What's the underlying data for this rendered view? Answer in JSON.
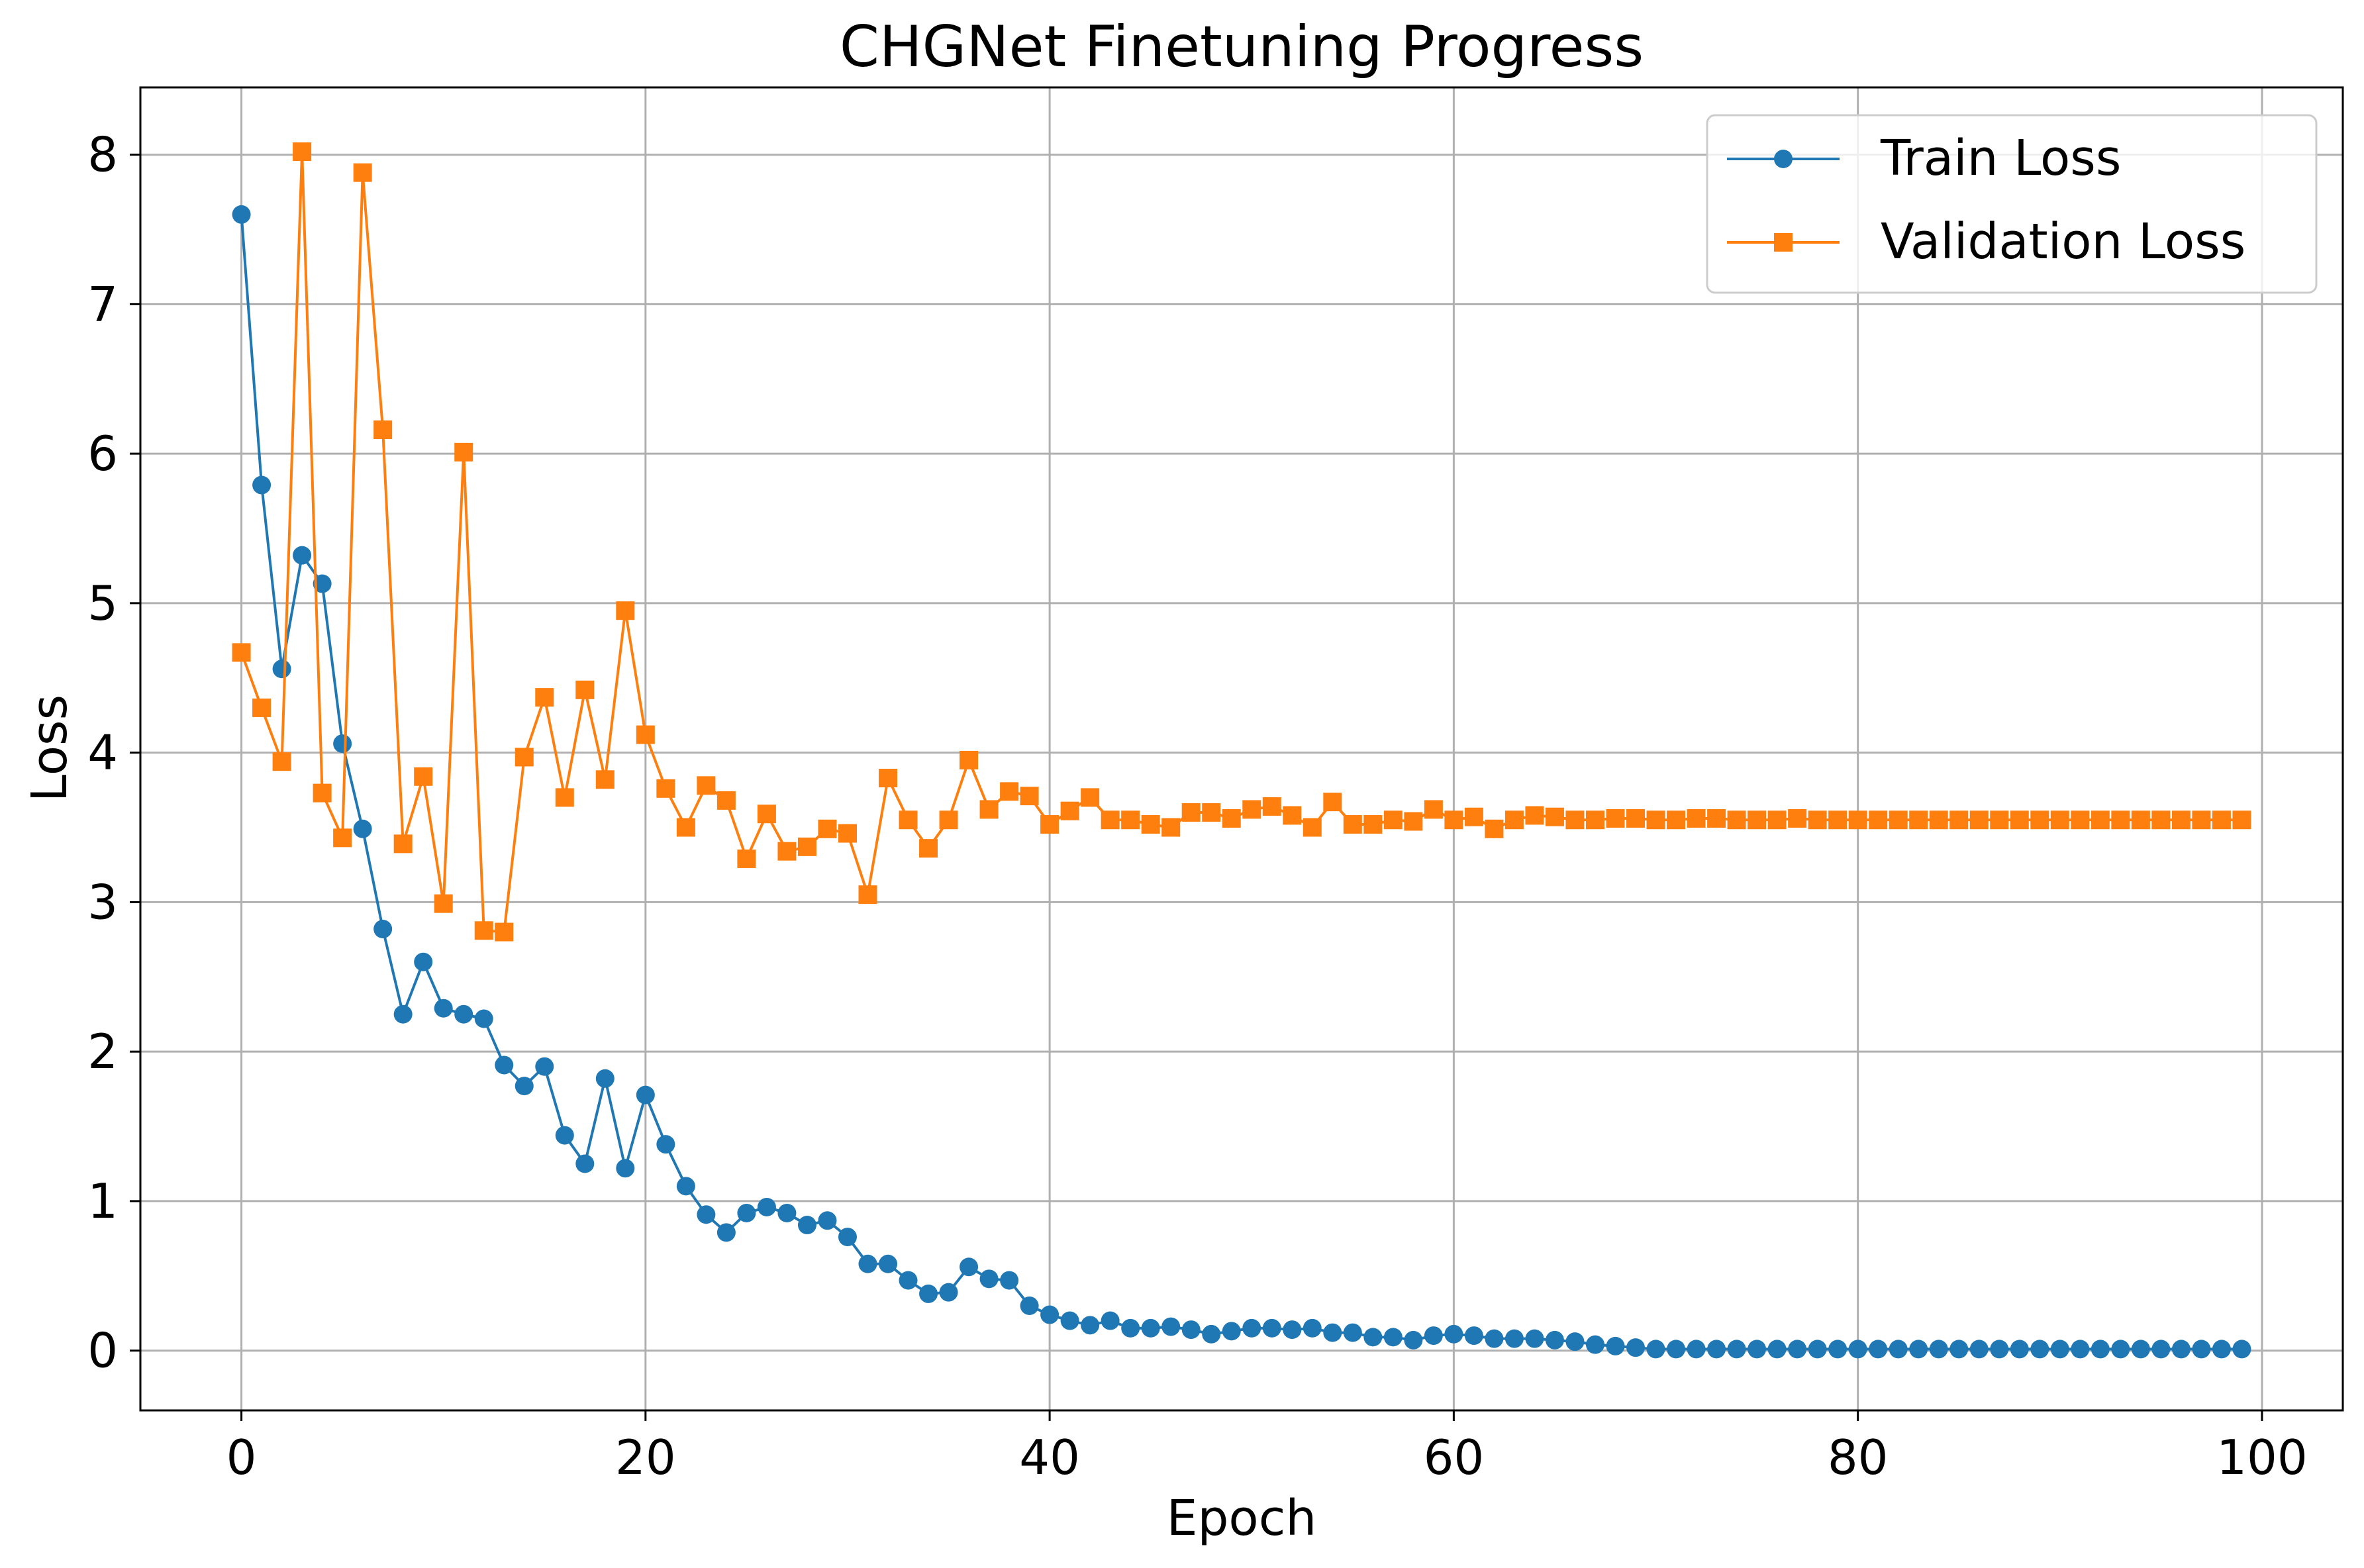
{
  "chart_data": {
    "type": "line",
    "title": "CHGNet Finetuning Progress",
    "xlabel": "Epoch",
    "ylabel": "Loss",
    "xlim": [
      -5,
      104
    ],
    "ylim": [
      -0.4,
      8.45
    ],
    "xticks": [
      0,
      20,
      40,
      60,
      80,
      100
    ],
    "yticks": [
      0,
      1,
      2,
      3,
      4,
      5,
      6,
      7,
      8
    ],
    "grid": true,
    "legend": "top-right",
    "series": [
      {
        "name": "Train Loss",
        "color": "#1f77b4",
        "marker": "circle",
        "values": [
          7.6,
          5.79,
          4.56,
          5.32,
          5.13,
          4.06,
          3.49,
          2.82,
          2.25,
          2.6,
          2.29,
          2.25,
          2.22,
          1.91,
          1.77,
          1.9,
          1.44,
          1.25,
          1.82,
          1.22,
          1.71,
          1.38,
          1.1,
          0.91,
          0.79,
          0.92,
          0.96,
          0.92,
          0.84,
          0.87,
          0.76,
          0.58,
          0.58,
          0.47,
          0.38,
          0.39,
          0.56,
          0.48,
          0.47,
          0.3,
          0.24,
          0.2,
          0.17,
          0.2,
          0.15,
          0.15,
          0.16,
          0.14,
          0.11,
          0.13,
          0.15,
          0.15,
          0.14,
          0.15,
          0.12,
          0.12,
          0.09,
          0.09,
          0.07,
          0.1,
          0.11,
          0.1,
          0.08,
          0.08,
          0.08,
          0.07,
          0.06,
          0.04,
          0.03,
          0.02,
          0.01,
          0.01,
          0.01,
          0.01,
          0.01,
          0.01,
          0.01,
          0.01,
          0.01,
          0.01,
          0.01,
          0.01,
          0.01,
          0.01,
          0.01,
          0.01,
          0.01,
          0.01,
          0.01,
          0.01,
          0.01,
          0.01,
          0.01,
          0.01,
          0.01,
          0.01,
          0.01,
          0.01,
          0.01,
          0.01
        ]
      },
      {
        "name": "Validation Loss",
        "color": "#ff7f0e",
        "marker": "square",
        "values": [
          4.67,
          4.3,
          3.94,
          8.02,
          3.73,
          3.43,
          7.88,
          6.16,
          3.39,
          3.84,
          2.99,
          6.01,
          2.81,
          2.8,
          3.97,
          4.37,
          3.7,
          4.42,
          3.82,
          4.95,
          4.12,
          3.76,
          3.5,
          3.78,
          3.68,
          3.29,
          3.59,
          3.34,
          3.37,
          3.49,
          3.46,
          3.05,
          3.83,
          3.55,
          3.36,
          3.55,
          3.95,
          3.62,
          3.74,
          3.71,
          3.52,
          3.61,
          3.7,
          3.55,
          3.55,
          3.52,
          3.5,
          3.6,
          3.6,
          3.56,
          3.62,
          3.64,
          3.58,
          3.5,
          3.67,
          3.52,
          3.52,
          3.55,
          3.54,
          3.62,
          3.55,
          3.57,
          3.49,
          3.55,
          3.58,
          3.57,
          3.55,
          3.55,
          3.56,
          3.56,
          3.55,
          3.55,
          3.56,
          3.56,
          3.55,
          3.55,
          3.55,
          3.56,
          3.55,
          3.55,
          3.55,
          3.55,
          3.55,
          3.55,
          3.55,
          3.55,
          3.55,
          3.55,
          3.55,
          3.55,
          3.55,
          3.55,
          3.55,
          3.55,
          3.55,
          3.55,
          3.55,
          3.55,
          3.55,
          3.55
        ]
      }
    ]
  }
}
